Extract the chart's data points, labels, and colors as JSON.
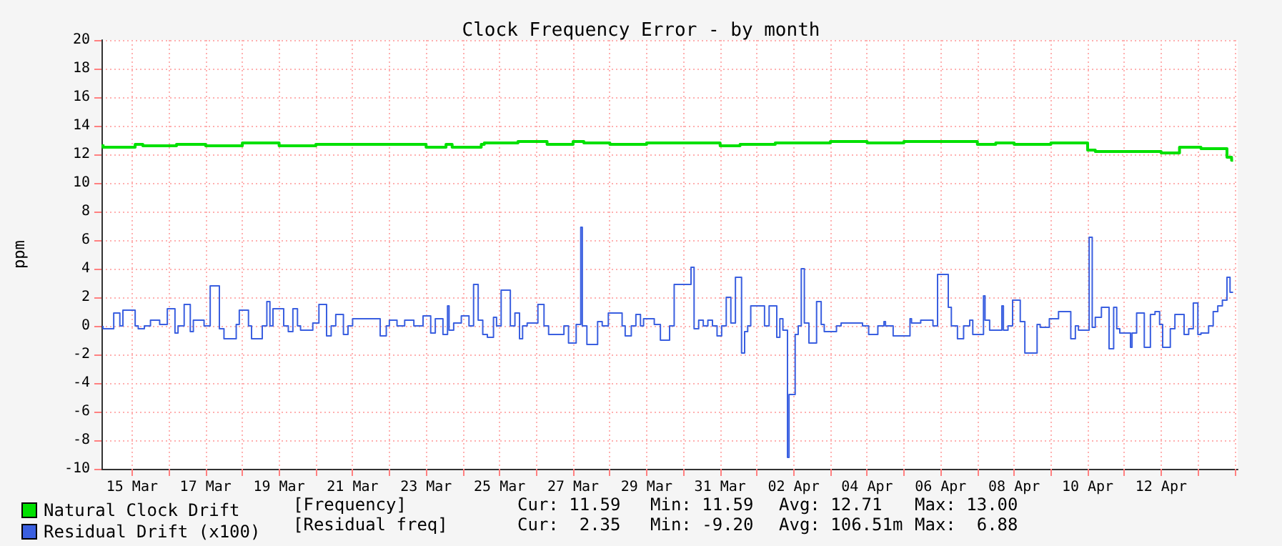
{
  "chart_data": {
    "type": "step",
    "title": "Clock Frequency Error - by month",
    "ylabel": "ppm",
    "xlim": [
      "--03-14T04:00",
      "--04-14T02:00"
    ],
    "xticks": [
      {
        "value": "--03-15",
        "label": "15 Mar"
      },
      {
        "value": "--03-16",
        "label": null
      },
      {
        "value": "--03-17",
        "label": "17 Mar"
      },
      {
        "value": "--03-18",
        "label": null
      },
      {
        "value": "--03-19",
        "label": "19 Mar"
      },
      {
        "value": "--03-20",
        "label": null
      },
      {
        "value": "--03-21",
        "label": "21 Mar"
      },
      {
        "value": "--03-22",
        "label": null
      },
      {
        "value": "--03-23",
        "label": "23 Mar"
      },
      {
        "value": "--03-24",
        "label": null
      },
      {
        "value": "--03-25",
        "label": "25 Mar"
      },
      {
        "value": "--03-26",
        "label": null
      },
      {
        "value": "--03-27",
        "label": "27 Mar"
      },
      {
        "value": "--03-28",
        "label": null
      },
      {
        "value": "--03-29",
        "label": "29 Mar"
      },
      {
        "value": "--03-30",
        "label": null
      },
      {
        "value": "--03-31",
        "label": "31 Mar"
      },
      {
        "value": "--04-01",
        "label": null
      },
      {
        "value": "--04-02",
        "label": "02 Apr"
      },
      {
        "value": "--04-03",
        "label": null
      },
      {
        "value": "--04-04",
        "label": "04 Apr"
      },
      {
        "value": "--04-05",
        "label": null
      },
      {
        "value": "--04-06",
        "label": "06 Apr"
      },
      {
        "value": "--04-07",
        "label": null
      },
      {
        "value": "--04-08",
        "label": "08 Apr"
      },
      {
        "value": "--04-09",
        "label": null
      },
      {
        "value": "--04-10",
        "label": "10 Apr"
      },
      {
        "value": "--04-11",
        "label": null
      },
      {
        "value": "--04-12",
        "label": "12 Apr"
      },
      {
        "value": "--04-13",
        "label": null
      },
      {
        "value": "--04-14",
        "label": null
      }
    ],
    "ylim": [
      -10,
      20
    ],
    "yticks": [
      -10,
      -8,
      -6,
      -4,
      -2,
      0,
      2,
      4,
      6,
      8,
      10,
      12,
      14,
      16,
      18,
      20
    ],
    "grid": true,
    "legend": "bottom left",
    "marker": "none",
    "series": [
      {
        "name": "Natural Clock Drift",
        "color": "#00e000",
        "x": [
          "--03-14T05:00",
          "--03-15T02:00",
          "--03-15T07:00",
          "--03-16T05:00",
          "--03-17T00:00",
          "--03-18T00:00",
          "--03-19T00:00",
          "--03-20T00:00",
          "--03-21T00:00",
          "--03-22T00:00",
          "--03-23T00:00",
          "--03-23T13:00",
          "--03-23T17:00",
          "--03-24T12:00",
          "--03-24T14:00",
          "--03-25T12:00",
          "--03-26T07:00",
          "--03-27T00:00",
          "--03-27T07:00",
          "--03-28T00:00",
          "--03-29T00:00",
          "--03-30T00:00",
          "--03-31T00:00",
          "--03-31T13:00",
          "--03-31T17:00",
          "--04-01T12:00",
          "--04-02T00:00",
          "--04-03T00:00",
          "--04-04T00:00",
          "--04-05T00:00",
          "--04-06T00:00",
          "--04-07T00:00",
          "--04-07T12:00",
          "--04-08T00:00",
          "--04-09T00:00",
          "--04-10T00:00",
          "--04-10T05:00",
          "--04-10T19:00",
          "--04-11T12:00",
          "--04-12T00:00",
          "--04-12T12:00",
          "--04-13T02:00",
          "--04-13T19:00",
          "--04-13T22:00",
          "--04-13T23:00"
        ],
        "values": [
          12.7,
          12.5,
          12.7,
          12.6,
          12.7,
          12.6,
          12.8,
          12.6,
          12.7,
          12.7,
          12.7,
          12.5,
          12.7,
          12.5,
          12.7,
          12.8,
          12.9,
          12.7,
          12.9,
          12.8,
          12.7,
          12.8,
          12.8,
          12.6,
          12.7,
          12.7,
          12.8,
          12.8,
          12.9,
          12.8,
          12.9,
          12.9,
          12.7,
          12.8,
          12.7,
          12.8,
          12.3,
          12.2,
          12.2,
          12.2,
          12.1,
          12.5,
          12.4,
          11.8,
          11.59
        ]
      },
      {
        "name": "Residual Drift (x100)",
        "color": "#3a5fe0",
        "x": [
          "--03-14T05:00",
          "--03-14T12:00",
          "--03-14T16:00",
          "--03-14T18:00",
          "--03-15T02:00",
          "--03-15T04:00",
          "--03-15T08:00",
          "--03-15T12:00",
          "--03-15T18:00",
          "--03-15T23:00",
          "--03-16T04:00",
          "--03-16T06:00",
          "--03-16T10:00",
          "--03-16T14:00",
          "--03-16T16:00",
          "--03-16T23:00",
          "--03-17T03:00",
          "--03-17T09:00",
          "--03-17T12:00",
          "--03-17T20:00",
          "--03-17T22:00",
          "--03-18T04:00",
          "--03-18T06:00",
          "--03-18T13:00",
          "--03-18T16:00",
          "--03-18T18:00",
          "--03-18T20:00",
          "--03-19T03:00",
          "--03-19T06:00",
          "--03-19T09:00",
          "--03-19T12:00",
          "--03-19T14:00",
          "--03-19T22:00",
          "--03-20T02:00",
          "--03-20T07:00",
          "--03-20T10:00",
          "--03-20T13:00",
          "--03-20T18:00",
          "--03-20T21:00",
          "--03-21T00:00",
          "--03-21T18:00",
          "--03-21T22:00",
          "--03-22T00:00",
          "--03-22T05:00",
          "--03-22T10:00",
          "--03-22T16:00",
          "--03-22T22:00",
          "--03-23T03:00",
          "--03-23T06:00",
          "--03-23T11:00",
          "--03-23T14:00",
          "--03-23T15:00",
          "--03-23T18:00",
          "--03-23T23:00",
          "--03-24T04:00",
          "--03-24T07:00",
          "--03-24T10:00",
          "--03-24T13:00",
          "--03-24T16:00",
          "--03-24T20:00",
          "--03-24T22:00",
          "--03-25T01:00",
          "--03-25T07:00",
          "--03-25T10:00",
          "--03-25T13:00",
          "--03-25T15:00",
          "--03-25T18:00",
          "--03-26T01:00",
          "--03-26T05:00",
          "--03-26T08:00",
          "--03-26T18:00",
          "--03-26T21:00",
          "--03-27T02:00",
          "--03-27T05:00",
          "--03-27T06:00",
          "--03-27T09:00",
          "--03-27T16:00",
          "--03-27T19:00",
          "--03-27T23:00",
          "--03-28T08:00",
          "--03-28T10:00",
          "--03-28T14:00",
          "--03-28T17:00",
          "--03-28T20:00",
          "--03-28T22:00",
          "--03-29T05:00",
          "--03-29T09:00",
          "--03-29T15:00",
          "--03-29T18:00",
          "--03-30T05:00",
          "--03-30T07:00",
          "--03-30T10:00",
          "--03-30T13:00",
          "--03-30T16:00",
          "--03-30T19:00",
          "--03-30T22:00",
          "--03-31T01:00",
          "--03-31T04:00",
          "--03-31T07:00",
          "--03-31T10:00",
          "--03-31T14:00",
          "--03-31T16:00",
          "--03-31T18:00",
          "--03-31T20:00",
          "--04-01T05:00",
          "--04-01T08:00",
          "--04-01T13:00",
          "--04-01T15:00",
          "--04-01T17:00",
          "--04-01T20:00",
          "--04-01T21:00",
          "--04-02T01:00",
          "--04-02T03:00",
          "--04-02T05:00",
          "--04-02T07:00",
          "--04-02T10:00",
          "--04-02T15:00",
          "--04-02T18:00",
          "--04-02T20:00",
          "--04-03T04:00",
          "--04-03T07:00",
          "--04-03T21:00",
          "--04-04T01:00",
          "--04-04T07:00",
          "--04-04T11:00",
          "--04-04T12:00",
          "--04-04T17:00",
          "--04-05T04:00",
          "--04-05T05:00",
          "--04-05T11:00",
          "--04-05T19:00",
          "--04-05T22:00",
          "--04-06T05:00",
          "--04-06T07:00",
          "--04-06T11:00",
          "--04-06T15:00",
          "--04-06T19:00",
          "--04-06T21:00",
          "--04-07T04:00",
          "--04-07T05:00",
          "--04-07T08:00",
          "--04-07T16:00",
          "--04-07T17:00",
          "--04-07T20:00",
          "--04-07T23:00",
          "--04-08T04:00",
          "--04-08T07:00",
          "--04-08T15:00",
          "--04-08T17:00",
          "--04-08T23:00",
          "--04-09T05:00",
          "--04-09T13:00",
          "--04-09T16:00",
          "--04-09T18:00",
          "--04-10T01:00",
          "--04-10T03:00",
          "--04-10T05:00",
          "--04-10T09:00",
          "--04-10T14:00",
          "--04-10T17:00",
          "--04-10T19:00",
          "--04-10T21:00",
          "--04-11T04:00",
          "--04-11T05:00",
          "--04-11T08:00",
          "--04-11T13:00",
          "--04-11T17:00",
          "--04-11T20:00",
          "--04-11T23:00",
          "--04-12T01:00",
          "--04-12T06:00",
          "--04-12T09:00",
          "--04-12T15:00",
          "--04-12T18:00",
          "--04-12T21:00",
          "--04-13T00:00",
          "--04-13T02:00",
          "--04-13T07:00",
          "--04-13T10:00",
          "--04-13T13:00",
          "--04-13T16:00",
          "--04-13T19:00",
          "--04-13T21:00",
          "--04-13T23:00"
        ],
        "values": [
          0,
          -0.2,
          0.9,
          0,
          1.1,
          0,
          -0.2,
          0,
          0.4,
          0.1,
          1.2,
          -0.5,
          0,
          1.5,
          -0.4,
          0.4,
          0,
          2.8,
          -0.2,
          -0.9,
          0.1,
          1.1,
          0,
          -0.9,
          0,
          1.7,
          0,
          1.2,
          0,
          -0.4,
          1.2,
          0,
          -0.3,
          0.2,
          1.5,
          -0.7,
          0,
          0.8,
          -0.6,
          0,
          0.5,
          -0.7,
          0,
          0.4,
          0,
          0.4,
          0,
          0.7,
          -0.5,
          0.5,
          -0.6,
          1.4,
          -0.3,
          0.2,
          0.7,
          0,
          2.9,
          0.4,
          -0.6,
          -0.8,
          0.6,
          0,
          2.5,
          0,
          0.9,
          -0.9,
          0,
          0.2,
          1.5,
          0,
          -0.6,
          0,
          -1.2,
          0.1,
          6.9,
          0,
          -1.3,
          0.3,
          0,
          0.9,
          0,
          -0.7,
          0,
          0.8,
          0,
          0.5,
          0.1,
          -1,
          0,
          2.9,
          4.1,
          -0.2,
          0.4,
          0,
          0.4,
          0,
          -0.7,
          0,
          2,
          0.2,
          3.4,
          -1.9,
          -0.4,
          0,
          1.4,
          0,
          1.4,
          -0.8,
          0.5,
          -0.3,
          -9.2,
          -4.8,
          -0.6,
          0,
          4,
          0.2,
          -1.2,
          1.7,
          0.1,
          -0.4,
          0,
          0.2,
          0,
          -0.6,
          0,
          0.3,
          0,
          -0.7,
          0.5,
          0.2,
          0.4,
          0,
          3.6,
          1.3,
          0,
          -0.9,
          0,
          0.4,
          -0.6,
          2.1,
          0.4,
          -0.3,
          1.4,
          -0.3,
          0,
          1.8,
          0.3,
          -1.9,
          0.1,
          -0.1,
          0.5,
          1,
          -0.9,
          0,
          -0.3,
          6.2,
          -0.1,
          0.6,
          1.3,
          -1.6,
          1.3,
          -0.2,
          -0.5,
          -1.5,
          -0.5,
          0.9,
          -1.5,
          0.8,
          1,
          0.1,
          -1.5,
          -0.2,
          0.8,
          -0.6,
          -0.2,
          1.6,
          -0.6,
          -0.5,
          0,
          1,
          1.4,
          1.8,
          3.4,
          2.35
        ]
      }
    ],
    "annotations": [
      "[Frequency]",
      "Cur: 11.59",
      "Min: 11.59",
      "Avg: 12.71",
      "Max: 13.00",
      "[Residual freq]",
      "Cur:  2.35",
      "Min: -9.20",
      "Avg: 106.51m",
      "Max:  6.88"
    ]
  }
}
